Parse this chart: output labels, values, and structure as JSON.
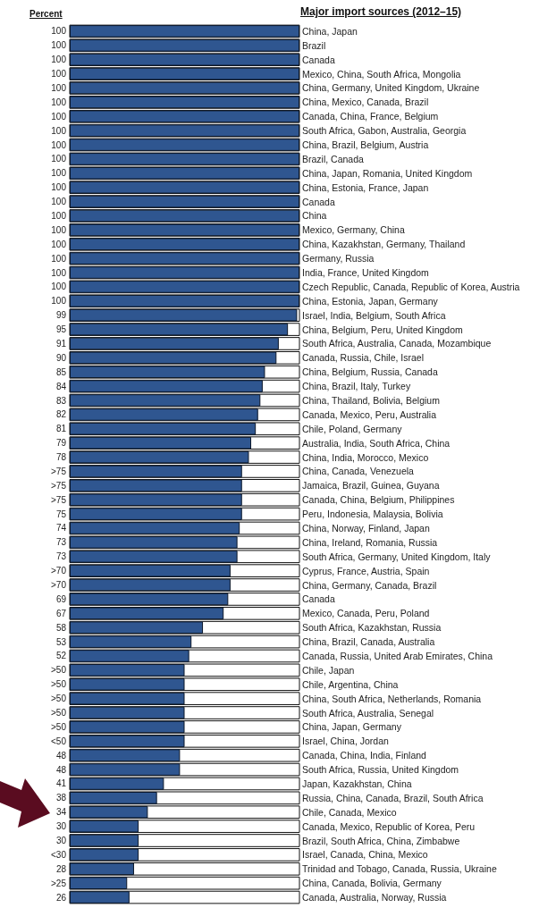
{
  "chart_data": {
    "type": "bar",
    "orientation": "horizontal",
    "xlabel": "Percent",
    "ylabel": "Major import sources (2012–15)",
    "color": "#2f5690",
    "categories": [
      "China, Japan",
      "Brazil",
      "Canada",
      "Mexico, China, South Africa, Mongolia",
      "China, Germany, United Kingdom, Ukraine",
      "China, Mexico, Canada, Brazil",
      "Canada, China, France, Belgium",
      "South Africa, Gabon, Australia, Georgia",
      "China, Brazil, Belgium, Austria",
      "Brazil, Canada",
      "China, Japan, Romania, United Kingdom",
      "China, Estonia, France, Japan",
      "Canada",
      "China",
      "Mexico, Germany, China",
      "China, Kazakhstan, Germany, Thailand",
      "Germany, Russia",
      "India, France, United Kingdom",
      "Czech Republic, Canada, Republic of Korea, Austria",
      "China, Estonia, Japan, Germany",
      "Israel, India, Belgium, South Africa",
      "China, Belgium, Peru, United Kingdom",
      "South Africa, Australia, Canada, Mozambique",
      "Canada, Russia, Chile, Israel",
      "China, Belgium, Russia, Canada",
      "China, Brazil, Italy, Turkey",
      "China, Thailand, Bolivia, Belgium",
      "Canada, Mexico, Peru, Australia",
      "Chile, Poland, Germany",
      "Australia, India, South Africa, China",
      "China, India, Morocco, Mexico",
      "China, Canada, Venezuela",
      "Jamaica, Brazil, Guinea, Guyana",
      "Canada, China, Belgium, Philippines",
      "Peru, Indonesia, Malaysia, Bolivia",
      "China, Norway, Finland, Japan",
      "China, Ireland, Romania, Russia",
      "South Africa, Germany, United Kingdom, Italy",
      "Cyprus, France, Austria, Spain",
      "China, Germany, Canada, Brazil",
      "Canada",
      "Mexico, Canada, Peru, Poland",
      "South Africa, Kazakhstan, Russia",
      "China, Brazil, Canada, Australia",
      "Canada, Russia, United Arab Emirates, China",
      "Chile, Japan",
      "Chile, Argentina, China",
      "China, South Africa, Netherlands, Romania",
      "South Africa, Australia, Senegal",
      "China, Japan, Germany",
      "Israel, China, Jordan",
      "Canada, China, India, Finland",
      "South Africa, Russia, United Kingdom",
      "Japan, Kazakhstan, China",
      "Russia, China, Canada, Brazil, South Africa",
      "Chile, Canada, Mexico",
      "Canada, Mexico, Republic of Korea, Peru",
      "Brazil, South Africa, China, Zimbabwe",
      "Israel, Canada, China, Mexico",
      "Trinidad and Tobago, Canada, Russia, Ukraine",
      "China, Canada, Bolivia, Germany",
      "Canada, Australia, Norway, Russia"
    ],
    "values": [
      100,
      100,
      100,
      100,
      100,
      100,
      100,
      100,
      100,
      100,
      100,
      100,
      100,
      100,
      100,
      100,
      100,
      100,
      100,
      100,
      99,
      95,
      91,
      90,
      85,
      84,
      83,
      82,
      81,
      79,
      78,
      75,
      75,
      75,
      75,
      74,
      73,
      73,
      70,
      70,
      69,
      67,
      58,
      53,
      52,
      50,
      50,
      50,
      50,
      50,
      50,
      48,
      48,
      41,
      38,
      34,
      30,
      30,
      30,
      28,
      25,
      26
    ],
    "value_labels": [
      "100",
      "100",
      "100",
      "100",
      "100",
      "100",
      "100",
      "100",
      "100",
      "100",
      "100",
      "100",
      "100",
      "100",
      "100",
      "100",
      "100",
      "100",
      "100",
      "100",
      "99",
      "95",
      "91",
      "90",
      "85",
      "84",
      "83",
      "82",
      "81",
      "79",
      "78",
      ">75",
      ">75",
      ">75",
      "75",
      "74",
      "73",
      "73",
      ">70",
      ">70",
      "69",
      "67",
      "58",
      "53",
      "52",
      ">50",
      ">50",
      ">50",
      ">50",
      ">50",
      "<50",
      "48",
      "48",
      "41",
      "38",
      "34",
      "30",
      "30",
      "<30",
      "28",
      ">25",
      "26"
    ],
    "xlim": [
      0,
      100
    ]
  }
}
